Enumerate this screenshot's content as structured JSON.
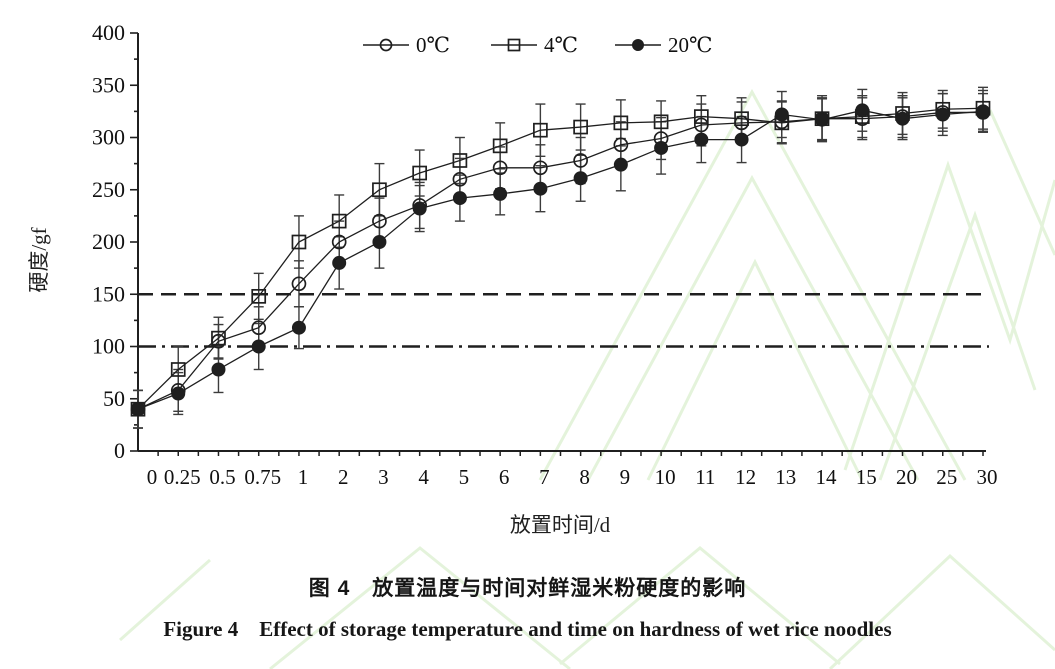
{
  "chart_data": {
    "type": "line",
    "title": "",
    "xlabel": "放置时间/d",
    "ylabel": "硬度/gf",
    "ylim": [
      0,
      400
    ],
    "y_major_step": 50,
    "y_minor_step": 25,
    "grid": false,
    "legend_position": "top-center",
    "categories": [
      "0",
      "0.25",
      "0.5",
      "0.75",
      "1",
      "2",
      "3",
      "4",
      "5",
      "6",
      "7",
      "8",
      "9",
      "10",
      "11",
      "12",
      "13",
      "14",
      "15",
      "20",
      "25",
      "30"
    ],
    "series": [
      {
        "name": "0℃",
        "marker": "open-circle",
        "values": [
          40,
          58,
          105,
          118,
          160,
          200,
          220,
          235,
          260,
          271,
          271,
          278,
          293,
          299,
          312,
          314,
          315,
          318,
          318,
          320,
          324,
          324
        ],
        "errors": [
          18,
          20,
          16,
          20,
          22,
          20,
          22,
          22,
          20,
          20,
          22,
          22,
          22,
          20,
          20,
          20,
          20,
          20,
          20,
          20,
          18,
          18
        ]
      },
      {
        "name": "4℃",
        "marker": "open-square",
        "values": [
          40,
          78,
          108,
          148,
          200,
          220,
          250,
          266,
          278,
          292,
          307,
          310,
          314,
          315,
          320,
          318,
          314,
          318,
          320,
          323,
          327,
          328
        ],
        "errors": [
          18,
          22,
          20,
          22,
          25,
          25,
          25,
          22,
          22,
          22,
          25,
          22,
          22,
          20,
          20,
          20,
          20,
          22,
          20,
          20,
          18,
          20
        ]
      },
      {
        "name": "20℃",
        "marker": "filled-circle",
        "values": [
          40,
          55,
          78,
          100,
          118,
          180,
          200,
          232,
          242,
          246,
          251,
          261,
          274,
          290,
          298,
          298,
          322,
          317,
          326,
          318,
          322,
          325
        ],
        "errors": [
          18,
          20,
          22,
          22,
          20,
          25,
          25,
          22,
          22,
          20,
          22,
          22,
          25,
          25,
          22,
          22,
          22,
          20,
          20,
          20,
          20,
          20
        ]
      }
    ],
    "reference_lines": [
      {
        "y": 150,
        "style": "dashed"
      },
      {
        "y": 100,
        "style": "dash-dot"
      }
    ]
  },
  "caption": {
    "line1_zh": "图 4　放置温度与时间对鲜湿米粉硬度的影响",
    "line2_en": "Figure 4　Effect of storage temperature and time on hardness of wet rice noodles"
  },
  "colors": {
    "ink": "#1f1f1f",
    "error_bar": "#3c3c3c",
    "watermark": "#e4f3db"
  }
}
